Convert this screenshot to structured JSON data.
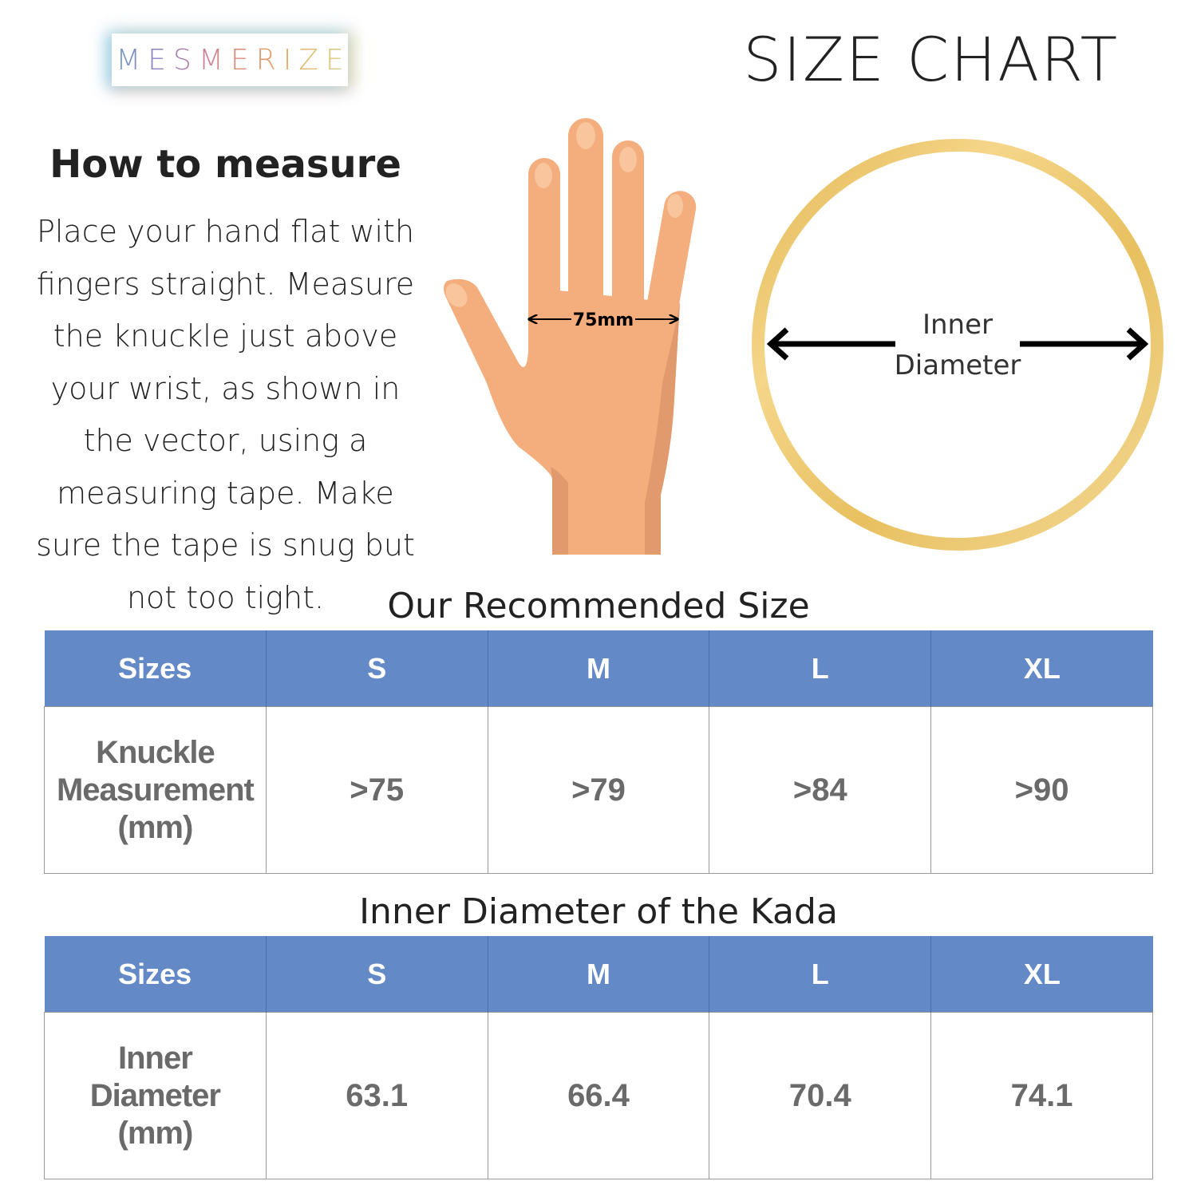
{
  "brand": {
    "logo_text": "MESMERIZE"
  },
  "header": {
    "title": "SIZE CHART"
  },
  "how_to": {
    "title": "How to measure",
    "text": "Place your hand flat with fingers straight. Measure the knuckle just above your wrist, as shown in the vector, using a measuring tape. Make sure the tape is snug but not too tight."
  },
  "hand_illustration": {
    "measurement_label": "75mm"
  },
  "ring_illustration": {
    "label_line1": "Inner",
    "label_line2": "Diameter",
    "ring_color": "#e8c060"
  },
  "colors": {
    "table_header": "#6389c6",
    "cell_text": "#6a6a6a"
  },
  "knuckle_table": {
    "title": "Our Recommended Size",
    "headers": [
      "Sizes",
      "S",
      "M",
      "L",
      "XL"
    ],
    "row_label": [
      "Knuckle",
      "Measurement",
      "(mm)"
    ],
    "values": [
      ">75",
      ">79",
      ">84",
      ">90"
    ]
  },
  "diameter_table": {
    "title": "Inner Diameter of the Kada",
    "headers": [
      "Sizes",
      "S",
      "M",
      "L",
      "XL"
    ],
    "row_label": [
      "Inner",
      "Diameter",
      "(mm)"
    ],
    "values": [
      "63.1",
      "66.4",
      "70.4",
      "74.1"
    ]
  }
}
